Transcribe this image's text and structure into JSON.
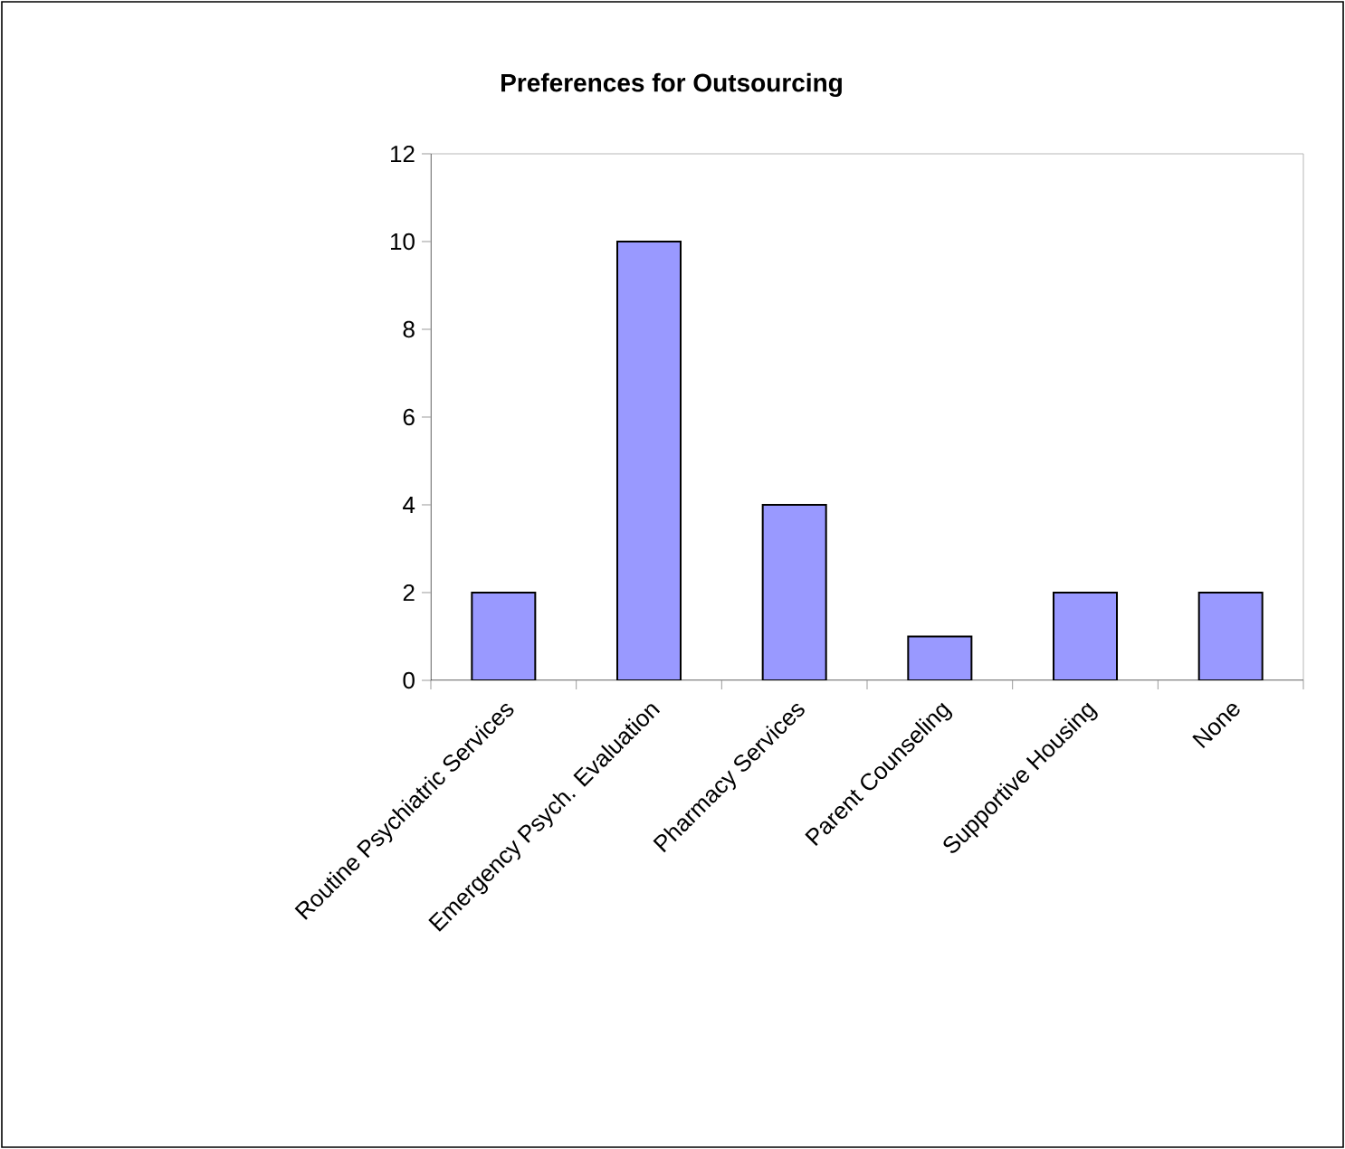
{
  "chart_data": {
    "type": "bar",
    "title": "Preferences for Outsourcing",
    "categories": [
      "Routine Psychiatric Services",
      "Emergency Psych. Evaluation",
      "Pharmacy Services",
      "Parent Counseling",
      "Supportive Housing",
      "None"
    ],
    "values": [
      2,
      10,
      4,
      1,
      2,
      2
    ],
    "color": "#9999ff",
    "ylim": [
      0,
      12
    ],
    "yticks": [
      0,
      2,
      4,
      6,
      8,
      10,
      12
    ],
    "grid": false
  }
}
